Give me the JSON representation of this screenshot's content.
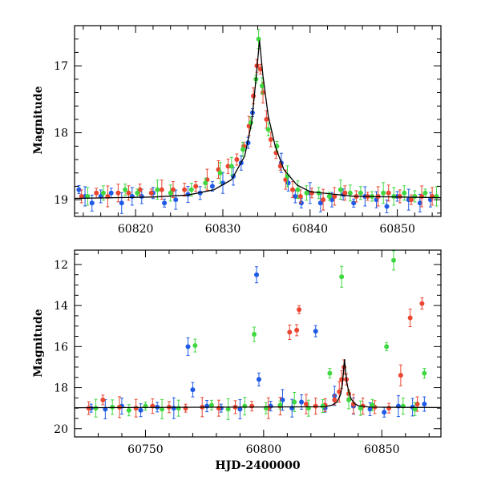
{
  "chart_data": [
    {
      "type": "scatter",
      "title": "",
      "xlabel": "",
      "ylabel": "Magnitude",
      "xlim": [
        60813,
        60855
      ],
      "ylim": [
        19.25,
        16.4
      ],
      "y_inverted": true,
      "xticks": [
        60820,
        60830,
        60840,
        60850
      ],
      "yticks": [
        17,
        18,
        19
      ],
      "grid": false,
      "legend": "none",
      "series": [
        {
          "color": "#1f5ae6",
          "x": [
            60813.5,
            60814.2,
            60815,
            60816,
            60817.2,
            60818.4,
            60819.6,
            60820.7,
            60822,
            60823.3,
            60824.6,
            60826,
            60827.4,
            60828.8,
            60830,
            60831.2,
            60832.1,
            60832.9,
            60833.4,
            60836.7,
            60837.5,
            60838.3,
            60839,
            60840,
            60841.2,
            60842.5,
            60843.8,
            60845,
            60846.3,
            60847.6,
            60848.8,
            60850,
            60851.3,
            60852.6,
            60853.8
          ],
          "y": [
            18.85,
            18.95,
            19.05,
            18.95,
            18.9,
            19.05,
            18.95,
            18.95,
            18.9,
            19.05,
            19.0,
            18.92,
            18.9,
            18.8,
            18.75,
            18.65,
            18.45,
            18.15,
            17.7,
            18.45,
            18.75,
            18.95,
            19.05,
            18.9,
            19.05,
            19.0,
            18.92,
            19.05,
            18.95,
            19.0,
            19.1,
            18.95,
            19.0,
            19.05,
            19.0
          ]
        },
        {
          "color": "#ea4630",
          "x": [
            60813.8,
            60815.5,
            60816.8,
            60818,
            60819.2,
            60820.5,
            60821.8,
            60823,
            60824.3,
            60825.6,
            60826.9,
            60828.2,
            60829.5,
            60830.6,
            60831.6,
            60832.4,
            60833,
            60833.5,
            60833.9,
            60834.3,
            60834.6,
            60835,
            60835.5,
            60836.1,
            60836.6,
            60837.2,
            60838,
            60838.9,
            60840.2,
            60841.5,
            60842.8,
            60844,
            60845.3,
            60846.6,
            60847.8,
            60849,
            60850.3,
            60851.6,
            60852.8,
            60854
          ],
          "y": [
            18.95,
            18.9,
            18.95,
            18.9,
            18.9,
            18.85,
            18.9,
            18.85,
            18.85,
            18.85,
            18.8,
            18.7,
            18.55,
            18.5,
            18.4,
            18.2,
            17.9,
            17.45,
            17.0,
            17.05,
            17.4,
            17.8,
            18.1,
            18.3,
            18.5,
            18.7,
            18.85,
            18.95,
            18.9,
            19.0,
            18.95,
            18.9,
            18.95,
            18.95,
            18.95,
            18.9,
            18.95,
            19.0,
            18.95,
            18.95
          ]
        },
        {
          "color": "#40d840",
          "x": [
            60814.5,
            60816.3,
            60818.8,
            60820.2,
            60822.5,
            60824,
            60826.4,
            60828,
            60829.7,
            60831,
            60832.3,
            60833.2,
            60833.8,
            60834.1,
            60834.5,
            60835.2,
            60836.2,
            60837.4,
            60838.6,
            60839.6,
            60841,
            60842.2,
            60843.5,
            60844.6,
            60845.8,
            60847.1,
            60848.4,
            60849.6,
            60850.8,
            60852,
            60853.2,
            60854.5
          ],
          "y": [
            18.95,
            18.9,
            18.85,
            18.9,
            18.85,
            18.9,
            18.85,
            18.75,
            18.6,
            18.5,
            18.25,
            17.85,
            17.2,
            16.6,
            17.3,
            17.95,
            18.2,
            18.65,
            18.85,
            18.9,
            18.9,
            18.95,
            18.85,
            18.9,
            18.9,
            18.95,
            18.9,
            18.95,
            18.9,
            18.95,
            18.9,
            18.95
          ]
        },
        {
          "color": "#000000",
          "x": [
            60813,
            60822,
            60826,
            60829,
            60831,
            60832.5,
            60833.3,
            60833.8,
            60834.2,
            60834.6,
            60835.2,
            60836,
            60837,
            60838.5,
            60840,
            60845,
            60855
          ],
          "y": [
            18.98,
            18.96,
            18.93,
            18.85,
            18.7,
            18.35,
            17.85,
            17.2,
            16.62,
            17.15,
            17.75,
            18.2,
            18.55,
            18.78,
            18.88,
            18.95,
            18.97
          ]
        }
      ]
    },
    {
      "type": "scatter",
      "title": "",
      "xlabel": "HJD-2400000",
      "ylabel": "Magnitude",
      "xlim": [
        60720,
        60875
      ],
      "ylim": [
        20.4,
        11.3
      ],
      "y_inverted": true,
      "xticks": [
        60750,
        60800,
        60850
      ],
      "yticks": [
        12,
        14,
        16,
        18,
        20
      ],
      "grid": false,
      "legend": "none",
      "series": [
        {
          "color": "#1f5ae6",
          "x": [
            60727,
            60733,
            60740,
            60748,
            60755,
            60762,
            60768,
            60770,
            60776,
            60782,
            60790,
            60797,
            60798,
            60803,
            60808,
            60812,
            60816,
            60822,
            60826,
            60830,
            60838,
            60845,
            60851,
            60857,
            60863,
            60868
          ],
          "y": [
            19.0,
            19.05,
            18.9,
            19.1,
            18.95,
            19.0,
            16.0,
            18.1,
            18.9,
            19.0,
            19.05,
            12.5,
            17.6,
            18.9,
            18.6,
            19.0,
            18.7,
            15.25,
            19.0,
            18.4,
            18.9,
            19.05,
            19.2,
            18.9,
            18.95,
            18.8
          ]
        },
        {
          "color": "#ea4630",
          "x": [
            60726,
            60732,
            60739,
            60746,
            60753,
            60760,
            60767,
            60774,
            60781,
            60788,
            60795,
            60802,
            60807,
            60811,
            60814,
            60815,
            60818,
            60822,
            60826,
            60830,
            60832,
            60833,
            60834,
            60835,
            60836,
            60838,
            60842,
            60847,
            60853,
            60858,
            60862,
            60865,
            60867
          ],
          "y": [
            19.0,
            18.6,
            18.95,
            19.0,
            18.9,
            18.95,
            19.0,
            18.95,
            19.0,
            18.95,
            18.9,
            19.0,
            18.9,
            15.3,
            15.2,
            14.2,
            18.8,
            18.9,
            18.85,
            18.6,
            18.2,
            17.6,
            17.0,
            17.6,
            18.3,
            18.8,
            18.9,
            18.95,
            19.0,
            17.4,
            14.6,
            18.8,
            13.9
          ]
        },
        {
          "color": "#40d840",
          "x": [
            60729,
            60736,
            60743,
            60750,
            60757,
            60764,
            60771,
            60778,
            60785,
            60792,
            60796,
            60801,
            60807,
            60813,
            60819,
            60825,
            60828,
            60833,
            60836,
            60841,
            60846,
            60852,
            60855,
            60859,
            60864,
            60868
          ],
          "y": [
            19.0,
            18.95,
            19.1,
            18.9,
            19.05,
            19.0,
            15.95,
            18.85,
            19.05,
            18.9,
            15.4,
            19.0,
            18.85,
            18.7,
            19.0,
            18.9,
            17.3,
            12.6,
            18.6,
            19.0,
            18.85,
            16.0,
            11.8,
            18.9,
            19.05,
            17.3
          ]
        },
        {
          "color": "#000000",
          "x": [
            60720,
            60826,
            60829,
            60831,
            60832.5,
            60833.3,
            60833.8,
            60834.2,
            60834.6,
            60835.2,
            60836,
            60837,
            60838.5,
            60840,
            60845,
            60875
          ],
          "y": [
            18.98,
            18.93,
            18.85,
            18.7,
            18.35,
            17.85,
            17.2,
            16.62,
            17.15,
            17.75,
            18.2,
            18.55,
            18.78,
            18.88,
            18.95,
            18.97
          ]
        }
      ]
    }
  ]
}
